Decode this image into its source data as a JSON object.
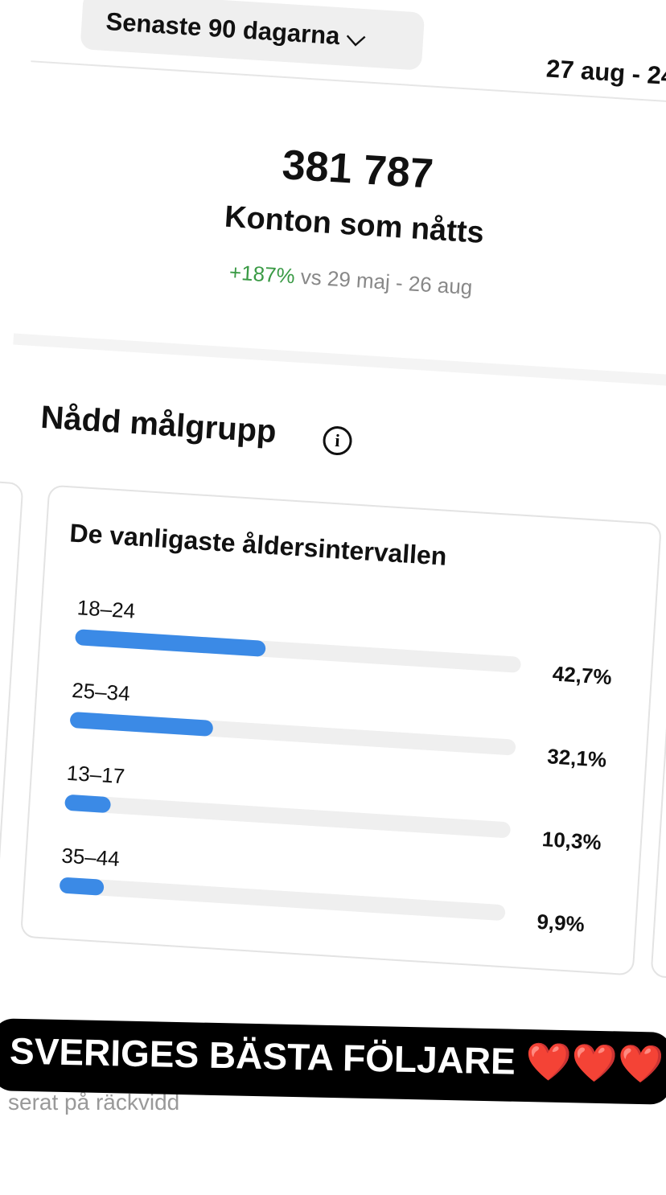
{
  "header": {
    "period": "Senaste 90 dagarna",
    "range": "27 aug - 24"
  },
  "summary": {
    "value": "381 787",
    "label": "Konton som nåtts",
    "change": "+187%",
    "comparison": "vs 29 maj - 26 aug"
  },
  "section": {
    "title": "Nådd målgrupp"
  },
  "chart_data": {
    "type": "bar",
    "title": "De vanligaste åldersintervallen",
    "categories": [
      "18–24",
      "25–34",
      "13–17",
      "35–44"
    ],
    "values": [
      42.7,
      32.1,
      10.3,
      9.9
    ],
    "value_labels": [
      "42,7%",
      "32,1%",
      "10,3%",
      "9,9%"
    ],
    "color": "#3b8ae6",
    "xlim": [
      0,
      100
    ]
  },
  "footer": {
    "note": "serat på räckvidd"
  },
  "overlay": {
    "text": "SVERIGES BÄSTA FÖLJARE ❤️❤️❤️"
  }
}
